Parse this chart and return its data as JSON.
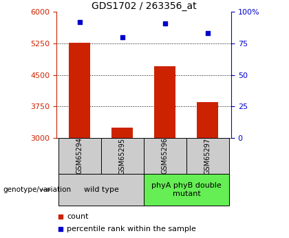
{
  "title": "GDS1702 / 263356_at",
  "categories": [
    "GSM65294",
    "GSM65295",
    "GSM65296",
    "GSM65297"
  ],
  "bar_values": [
    5270,
    3250,
    4700,
    3850
  ],
  "bar_bottom": 3000,
  "scatter_values": [
    92,
    80,
    91,
    83
  ],
  "left_ylim": [
    3000,
    6000
  ],
  "right_ylim": [
    0,
    100
  ],
  "left_yticks": [
    3000,
    3750,
    4500,
    5250,
    6000
  ],
  "right_yticks": [
    0,
    25,
    50,
    75,
    100
  ],
  "right_yticklabels": [
    "0",
    "25",
    "50",
    "75",
    "100%"
  ],
  "bar_color": "#cc2200",
  "scatter_color": "#0000cc",
  "dotted_line_values": [
    3750,
    4500,
    5250
  ],
  "groups": [
    {
      "label": "wild type",
      "indices": [
        0,
        1
      ]
    },
    {
      "label": "phyA phyB double\nmutant",
      "indices": [
        2,
        3
      ]
    }
  ],
  "group_colors": [
    "#cccccc",
    "#66ee55"
  ],
  "genotype_label": "genotype/variation",
  "bar_width": 0.5,
  "x_positions": [
    0,
    1,
    2,
    3
  ]
}
